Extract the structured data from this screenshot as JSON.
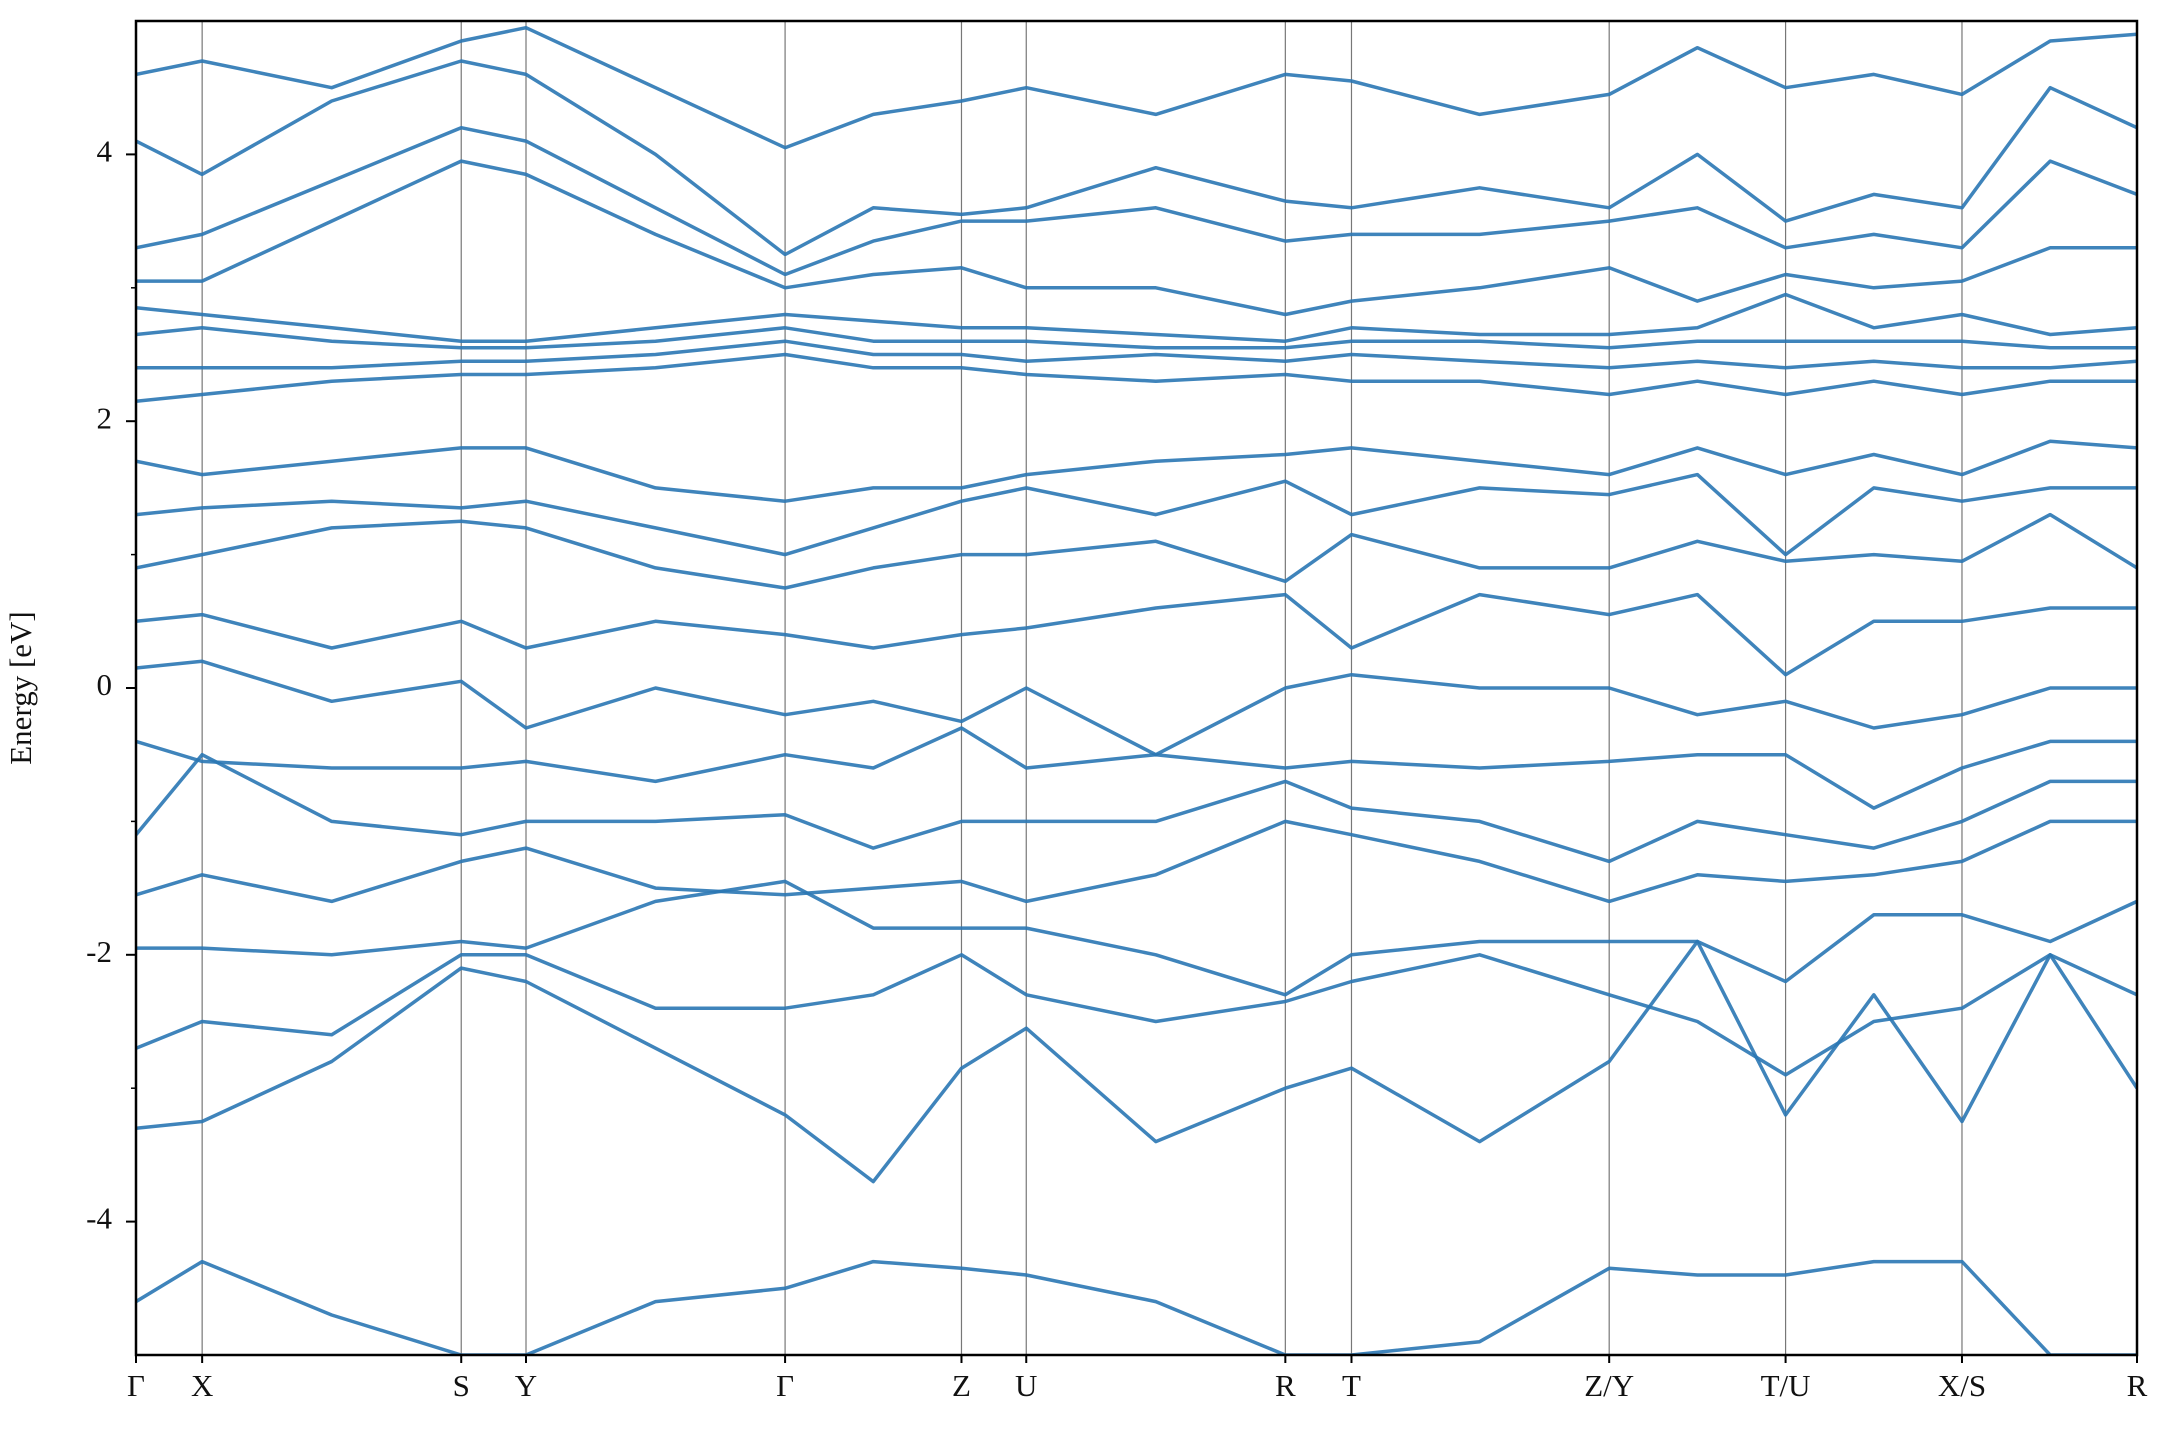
{
  "chart_data": {
    "type": "line",
    "ylabel": "Energy [eV]",
    "x": [
      0,
      0.48,
      1.42,
      2.36,
      2.83,
      3.77,
      4.71,
      5.35,
      5.99,
      6.46,
      7.4,
      8.34,
      8.82,
      9.75,
      10.69,
      11.33,
      11.97,
      12.61,
      13.25,
      13.89,
      14.52
    ],
    "xlim": [
      0,
      14.52
    ],
    "xticks": [
      {
        "value": 0,
        "label": "Γ"
      },
      {
        "value": 0.48,
        "label": "X"
      },
      {
        "value": 2.36,
        "label": "S"
      },
      {
        "value": 2.83,
        "label": "Y"
      },
      {
        "value": 4.71,
        "label": "Γ"
      },
      {
        "value": 5.99,
        "label": "Z"
      },
      {
        "value": 6.46,
        "label": "U"
      },
      {
        "value": 8.34,
        "label": "R"
      },
      {
        "value": 8.82,
        "label": "T"
      },
      {
        "value": 10.69,
        "label": "Z/Y"
      },
      {
        "value": 11.97,
        "label": "T/U"
      },
      {
        "value": 13.25,
        "label": "X/S"
      },
      {
        "value": 14.52,
        "label": "R"
      }
    ],
    "ylim": [
      -5,
      5
    ],
    "yticks": [
      -4,
      -2,
      0,
      2,
      4
    ],
    "yminorticks": [
      -3,
      -1,
      1,
      3
    ],
    "color": "#2a77b4",
    "series": [
      {
        "values": [
          -4.6,
          -4.3,
          -4.7,
          -5.0,
          -5.0,
          -4.6,
          -4.5,
          -4.3,
          -4.35,
          -4.4,
          -4.6,
          -5.0,
          -5.0,
          -4.9,
          -4.35,
          -4.4,
          -4.4,
          -4.3,
          -4.3,
          -5.0,
          -5.0
        ]
      },
      {
        "values": [
          -3.3,
          -3.25,
          -2.8,
          -2.1,
          -2.2,
          -2.7,
          -3.2,
          -3.7,
          -2.85,
          -2.55,
          -3.4,
          -3.0,
          -2.85,
          -3.4,
          -2.8,
          -1.9,
          -3.2,
          -2.3,
          -3.25,
          -2.0,
          -3.0
        ]
      },
      {
        "values": [
          -2.7,
          -2.5,
          -2.6,
          -2.0,
          -2.0,
          -2.4,
          -2.4,
          -2.3,
          -2.0,
          -2.3,
          -2.5,
          -2.35,
          -2.2,
          -2.0,
          -2.3,
          -2.5,
          -2.9,
          -2.5,
          -2.4,
          -2.0,
          -2.3
        ]
      },
      {
        "values": [
          -1.95,
          -1.95,
          -2.0,
          -1.9,
          -1.95,
          -1.6,
          -1.45,
          -1.8,
          -1.8,
          -1.8,
          -2.0,
          -2.3,
          -2.0,
          -1.9,
          -1.9,
          -1.9,
          -2.2,
          -1.7,
          -1.7,
          -1.9,
          -1.6
        ]
      },
      {
        "values": [
          -1.55,
          -1.4,
          -1.6,
          -1.3,
          -1.2,
          -1.5,
          -1.55,
          -1.5,
          -1.45,
          -1.6,
          -1.4,
          -1.0,
          -1.1,
          -1.3,
          -1.6,
          -1.4,
          -1.45,
          -1.4,
          -1.3,
          -1.0,
          -1.0
        ]
      },
      {
        "values": [
          -1.1,
          -0.5,
          -1.0,
          -1.1,
          -1.0,
          -1.0,
          -0.95,
          -1.2,
          -1.0,
          -1.0,
          -1.0,
          -0.7,
          -0.9,
          -1.0,
          -1.3,
          -1.0,
          -1.1,
          -1.2,
          -1.0,
          -0.7,
          -0.7
        ]
      },
      {
        "values": [
          -0.4,
          -0.55,
          -0.6,
          -0.6,
          -0.55,
          -0.7,
          -0.5,
          -0.6,
          -0.3,
          -0.6,
          -0.5,
          -0.6,
          -0.55,
          -0.6,
          -0.55,
          -0.5,
          -0.5,
          -0.9,
          -0.6,
          -0.4,
          -0.4
        ]
      },
      {
        "values": [
          0.15,
          0.2,
          -0.1,
          0.05,
          -0.3,
          0.0,
          -0.2,
          -0.1,
          -0.25,
          0.0,
          -0.5,
          0.0,
          0.1,
          0.0,
          0.0,
          -0.2,
          -0.1,
          -0.3,
          -0.2,
          0.0,
          0.0
        ]
      },
      {
        "values": [
          0.5,
          0.55,
          0.3,
          0.5,
          0.3,
          0.5,
          0.4,
          0.3,
          0.4,
          0.45,
          0.6,
          0.7,
          0.3,
          0.7,
          0.55,
          0.7,
          0.1,
          0.5,
          0.5,
          0.6,
          0.6
        ]
      },
      {
        "values": [
          0.9,
          1.0,
          1.2,
          1.25,
          1.2,
          0.9,
          0.75,
          0.9,
          1.0,
          1.0,
          1.1,
          0.8,
          1.15,
          0.9,
          0.9,
          1.1,
          0.95,
          1.0,
          0.95,
          1.3,
          0.9
        ]
      },
      {
        "values": [
          1.3,
          1.35,
          1.4,
          1.35,
          1.4,
          1.2,
          1.0,
          1.2,
          1.4,
          1.5,
          1.3,
          1.55,
          1.3,
          1.5,
          1.45,
          1.6,
          1.0,
          1.5,
          1.4,
          1.5,
          1.5
        ]
      },
      {
        "values": [
          1.7,
          1.6,
          1.7,
          1.8,
          1.8,
          1.5,
          1.4,
          1.5,
          1.5,
          1.6,
          1.7,
          1.75,
          1.8,
          1.7,
          1.6,
          1.8,
          1.6,
          1.75,
          1.6,
          1.85,
          1.8
        ]
      },
      {
        "values": [
          2.15,
          2.2,
          2.3,
          2.35,
          2.35,
          2.4,
          2.5,
          2.4,
          2.4,
          2.35,
          2.3,
          2.35,
          2.3,
          2.3,
          2.2,
          2.3,
          2.2,
          2.3,
          2.2,
          2.3,
          2.3
        ]
      },
      {
        "values": [
          2.4,
          2.4,
          2.4,
          2.45,
          2.45,
          2.5,
          2.6,
          2.5,
          2.5,
          2.45,
          2.5,
          2.45,
          2.5,
          2.45,
          2.4,
          2.45,
          2.4,
          2.45,
          2.4,
          2.4,
          2.45
        ]
      },
      {
        "values": [
          2.65,
          2.7,
          2.6,
          2.55,
          2.55,
          2.6,
          2.7,
          2.6,
          2.6,
          2.6,
          2.55,
          2.55,
          2.6,
          2.6,
          2.55,
          2.6,
          2.6,
          2.6,
          2.6,
          2.55,
          2.55
        ]
      },
      {
        "values": [
          2.85,
          2.8,
          2.7,
          2.6,
          2.6,
          2.7,
          2.8,
          2.75,
          2.7,
          2.7,
          2.65,
          2.6,
          2.7,
          2.65,
          2.65,
          2.7,
          2.95,
          2.7,
          2.8,
          2.65,
          2.7
        ]
      },
      {
        "values": [
          3.05,
          3.05,
          3.5,
          3.95,
          3.85,
          3.4,
          3.0,
          3.1,
          3.15,
          3.0,
          3.0,
          2.8,
          2.9,
          3.0,
          3.15,
          2.9,
          3.1,
          3.0,
          3.05,
          3.3,
          3.3
        ]
      },
      {
        "values": [
          3.3,
          3.4,
          3.8,
          4.2,
          4.1,
          3.6,
          3.1,
          3.35,
          3.5,
          3.5,
          3.6,
          3.35,
          3.4,
          3.4,
          3.5,
          3.6,
          3.3,
          3.4,
          3.3,
          3.95,
          3.7
        ]
      },
      {
        "values": [
          4.1,
          3.85,
          4.4,
          4.7,
          4.6,
          4.0,
          3.25,
          3.6,
          3.55,
          3.6,
          3.9,
          3.65,
          3.6,
          3.75,
          3.6,
          4.0,
          3.5,
          3.7,
          3.6,
          4.5,
          4.2
        ]
      },
      {
        "values": [
          4.6,
          4.7,
          4.5,
          4.85,
          4.95,
          4.5,
          4.05,
          4.3,
          4.4,
          4.5,
          4.3,
          4.6,
          4.55,
          4.3,
          4.45,
          4.8,
          4.5,
          4.6,
          4.45,
          4.85,
          4.9
        ]
      }
    ]
  }
}
